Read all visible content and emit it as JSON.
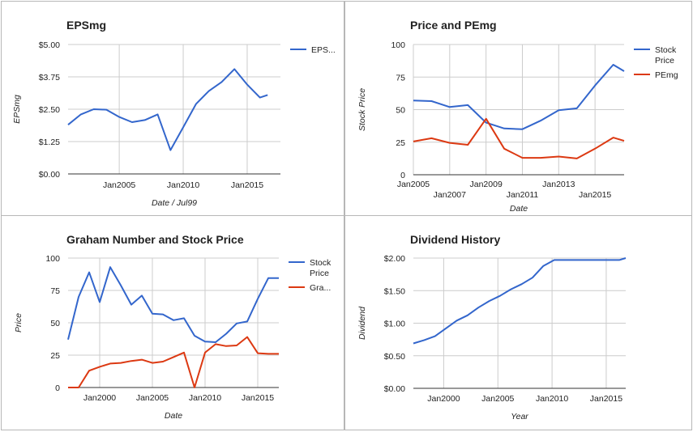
{
  "colors": {
    "blue": "#3366cc",
    "red": "#dc3912",
    "grid": "#cccccc",
    "baseline": "#333333"
  },
  "chart_data": [
    {
      "id": "eps",
      "type": "line",
      "title": "EPSmg",
      "xlabel": "Date / Jul99",
      "ylabel": "EPSmg",
      "x_ticks": [
        "Jan2005",
        "Jan2010",
        "Jan2015"
      ],
      "y_ticks": [
        "$0.00",
        "$1.25",
        "$2.50",
        "$3.75",
        "$5.00"
      ],
      "ylim": [
        0,
        5
      ],
      "xlim": [
        2000.0,
        2016.6
      ],
      "legend_position": "right",
      "series": [
        {
          "name": "EPS...",
          "color": "#3366cc",
          "x": [
            2000.0,
            2001.0,
            2002.0,
            2003.0,
            2004.0,
            2005.0,
            2006.0,
            2007.0,
            2008.0,
            2009.0,
            2010.0,
            2011.0,
            2012.0,
            2013.0,
            2014.0,
            2015.0,
            2015.6
          ],
          "y": [
            1.9,
            2.3,
            2.5,
            2.48,
            2.2,
            2.0,
            2.08,
            2.3,
            0.92,
            1.8,
            2.7,
            3.2,
            3.55,
            4.05,
            3.45,
            2.95,
            3.05
          ]
        }
      ]
    },
    {
      "id": "price_pe",
      "type": "line",
      "title": "Price and PEmg",
      "xlabel": "Date",
      "ylabel": "Stock Price",
      "x_ticks": [
        "Jan2005",
        "Jan2007",
        "Jan2009",
        "Jan2011",
        "Jan2013",
        "Jan2015"
      ],
      "y_ticks": [
        "0",
        "25",
        "50",
        "75",
        "100"
      ],
      "ylim": [
        0,
        100
      ],
      "xlim": [
        2005.0,
        2016.6
      ],
      "legend_position": "right",
      "series": [
        {
          "name": "Stock Price",
          "color": "#3366cc",
          "x": [
            2005.0,
            2006.0,
            2007.0,
            2008.0,
            2009.0,
            2010.0,
            2011.0,
            2012.0,
            2013.0,
            2014.0,
            2015.0,
            2016.0,
            2016.6
          ],
          "y": [
            57,
            56.5,
            52,
            53.5,
            40,
            35.5,
            35,
            41.5,
            49.5,
            51,
            68.5,
            84.5,
            79.5
          ]
        },
        {
          "name": "PEmg",
          "color": "#dc3912",
          "x": [
            2005.0,
            2006.0,
            2007.0,
            2008.0,
            2009.0,
            2010.0,
            2011.0,
            2012.0,
            2013.0,
            2014.0,
            2015.0,
            2016.0,
            2016.6
          ],
          "y": [
            25.5,
            28,
            24.5,
            23,
            43,
            20,
            13,
            13,
            14,
            12.5,
            20,
            28.5,
            26
          ]
        }
      ]
    },
    {
      "id": "graham",
      "type": "line",
      "title": "Graham Number and Stock Price",
      "xlabel": "Date",
      "ylabel": "Price",
      "x_ticks": [
        "Jan2000",
        "Jan2005",
        "Jan2010",
        "Jan2015"
      ],
      "y_ticks": [
        "0",
        "25",
        "50",
        "75",
        "100"
      ],
      "ylim": [
        0,
        100
      ],
      "xlim": [
        1996.0,
        2016.0
      ],
      "legend_position": "right",
      "series": [
        {
          "name": "Stock Price",
          "color": "#3366cc",
          "x": [
            1996.0,
            1997.0,
            1998.0,
            1999.0,
            2000.0,
            2001.0,
            2002.0,
            2003.0,
            2004.0,
            2005.0,
            2006.0,
            2007.0,
            2008.0,
            2009.0,
            2010.0,
            2011.0,
            2012.0,
            2013.0,
            2014.0,
            2015.0,
            2016.0
          ],
          "y": [
            37,
            70,
            89,
            66,
            93,
            79,
            64,
            71,
            57,
            56.5,
            52,
            53.5,
            40,
            35.5,
            35,
            41.5,
            49.5,
            51,
            68.5,
            84.5,
            84.5
          ]
        },
        {
          "name": "Gra...",
          "color": "#dc3912",
          "x": [
            1996.0,
            1997.0,
            1998.0,
            1999.0,
            2000.0,
            2001.0,
            2002.0,
            2003.0,
            2004.0,
            2005.0,
            2006.0,
            2007.0,
            2008.0,
            2009.0,
            2010.0,
            2011.0,
            2012.0,
            2013.0,
            2014.0,
            2015.0,
            2016.0
          ],
          "y": [
            0,
            0,
            13,
            16,
            18.5,
            19,
            20.5,
            21.5,
            19,
            20,
            23.5,
            27,
            0,
            27,
            33.5,
            32,
            32.5,
            39,
            26.5,
            26,
            26
          ]
        }
      ]
    },
    {
      "id": "dividend",
      "type": "line",
      "title": "Dividend History",
      "xlabel": "Year",
      "ylabel": "Dividend",
      "x_ticks": [
        "Jan2000",
        "Jan2005",
        "Jan2010",
        "Jan2015"
      ],
      "y_ticks": [
        "$0.00",
        "$0.50",
        "$1.00",
        "$1.50",
        "$2.00"
      ],
      "ylim": [
        0,
        2
      ],
      "xlim": [
        1996.7,
        2016.3
      ],
      "legend_position": "none",
      "series": [
        {
          "name": "",
          "color": "#3366cc",
          "x": [
            1996.7,
            1997.7,
            1998.7,
            1999.7,
            2000.7,
            2001.7,
            2002.7,
            2003.7,
            2004.7,
            2005.7,
            2006.7,
            2007.7,
            2008.7,
            2009.7,
            2010.7,
            2011.7,
            2012.7,
            2013.7,
            2014.7,
            2015.7,
            2016.3
          ],
          "y": [
            0.69,
            0.74,
            0.8,
            0.92,
            1.04,
            1.12,
            1.24,
            1.34,
            1.42,
            1.52,
            1.6,
            1.7,
            1.88,
            1.97,
            1.97,
            1.97,
            1.97,
            1.97,
            1.97,
            1.97,
            2.0
          ]
        }
      ]
    }
  ]
}
